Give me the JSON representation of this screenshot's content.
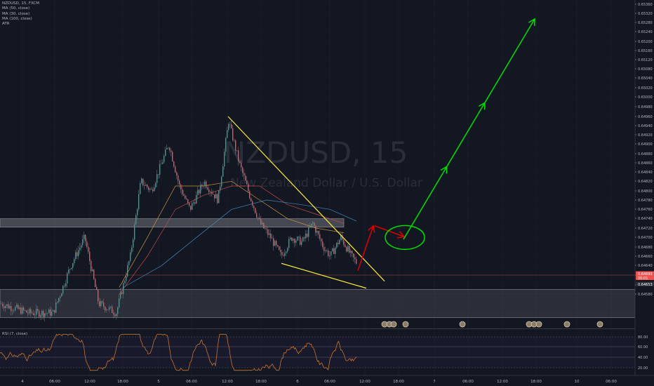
{
  "header": {
    "symbol_line": "NZDUSD, 15, FXCM",
    "indicators": [
      "MA (50, close)",
      "MA (30, close)",
      "MA (100, close)",
      "ATR"
    ]
  },
  "watermark": {
    "symbol": "NZDUSD, 15",
    "description": "New Zealand Dollar / U.S. Dollar"
  },
  "rsi_panel": {
    "label": "RSI (7, close)",
    "levels": [
      "80.00",
      "60.00",
      "40.00",
      "20.00"
    ]
  },
  "price_tags": [
    "0.64693",
    "00:01",
    "0.64653"
  ],
  "colors": {
    "background": "#131722",
    "up": "#26a69a",
    "down": "#ef5350",
    "trendline": "#ffeb3b",
    "arrow_green": "#00e000",
    "arrow_red": "#e00000",
    "rsi_line": "#c8732e",
    "zone": "#ffffff"
  },
  "chart_data": {
    "type": "candlestick",
    "yaxis_ticks": [
      "0.65360",
      "0.65320",
      "0.65280",
      "0.65240",
      "0.65200",
      "0.65160",
      "0.65120",
      "0.65080",
      "0.65040",
      "0.65020",
      "0.65000",
      "0.64980",
      "0.64960",
      "0.64940",
      "0.64920",
      "0.64900",
      "0.64880",
      "0.64860",
      "0.64840",
      "0.64820",
      "0.64800",
      "0.64780",
      "0.64760",
      "0.64740",
      "0.64720",
      "0.64700",
      "0.64680",
      "0.64660",
      "0.64640",
      "0.64620",
      "0.64600",
      "0.64580"
    ],
    "xaxis_ticks": [
      "4",
      "06:00",
      "12:00",
      "18:00",
      "5",
      "06:00",
      "12:00",
      "18:00",
      "6",
      "06:00",
      "12:00",
      "18:00",
      "7",
      "06:00",
      "12:00",
      "18:00",
      "10",
      "06:00"
    ],
    "resistance_zone": [
      0.64782,
      0.648
    ],
    "support_zone": [
      0.6459,
      0.6465
    ],
    "trendline_upper": [
      [
        325,
        0.6502
      ],
      [
        548,
        0.64668
      ]
    ],
    "trendline_lower": [
      [
        401,
        0.64705
      ],
      [
        522,
        0.64653
      ]
    ],
    "projection_red": [
      [
        510,
        0.6469
      ],
      [
        532,
        0.64785
      ],
      [
        548,
        0.64766
      ]
    ],
    "projection_green": [
      [
        575,
        0.64756
      ],
      [
        762,
        0.6531
      ]
    ],
    "target_ellipse": {
      "x": 577,
      "y": 0.6476
    },
    "moving_averages": [
      {
        "name": "MA (30, close)",
        "color": "#e0a040",
        "points": [
          [
            170,
            0.64655
          ],
          [
            210,
            0.6476
          ],
          [
            250,
            0.6487
          ],
          [
            290,
            0.6487
          ],
          [
            330,
            0.6488
          ],
          [
            370,
            0.6484
          ],
          [
            410,
            0.648
          ],
          [
            450,
            0.6478
          ],
          [
            490,
            0.6477
          ]
        ]
      },
      {
        "name": "MA (50, close)",
        "color": "#d05050",
        "points": [
          [
            170,
            0.6464
          ],
          [
            210,
            0.6472
          ],
          [
            250,
            0.6482
          ],
          [
            290,
            0.6485
          ],
          [
            330,
            0.6487
          ],
          [
            370,
            0.6487
          ],
          [
            410,
            0.6483
          ],
          [
            450,
            0.6481
          ],
          [
            490,
            0.6479
          ]
        ]
      },
      {
        "name": "MA (100, close)",
        "color": "#4a90c8",
        "points": [
          [
            170,
            0.6465
          ],
          [
            230,
            0.647
          ],
          [
            280,
            0.6476
          ],
          [
            330,
            0.6482
          ],
          [
            380,
            0.6484
          ],
          [
            430,
            0.6483
          ],
          [
            470,
            0.6482
          ],
          [
            508,
            0.64795
          ]
        ]
      }
    ]
  }
}
